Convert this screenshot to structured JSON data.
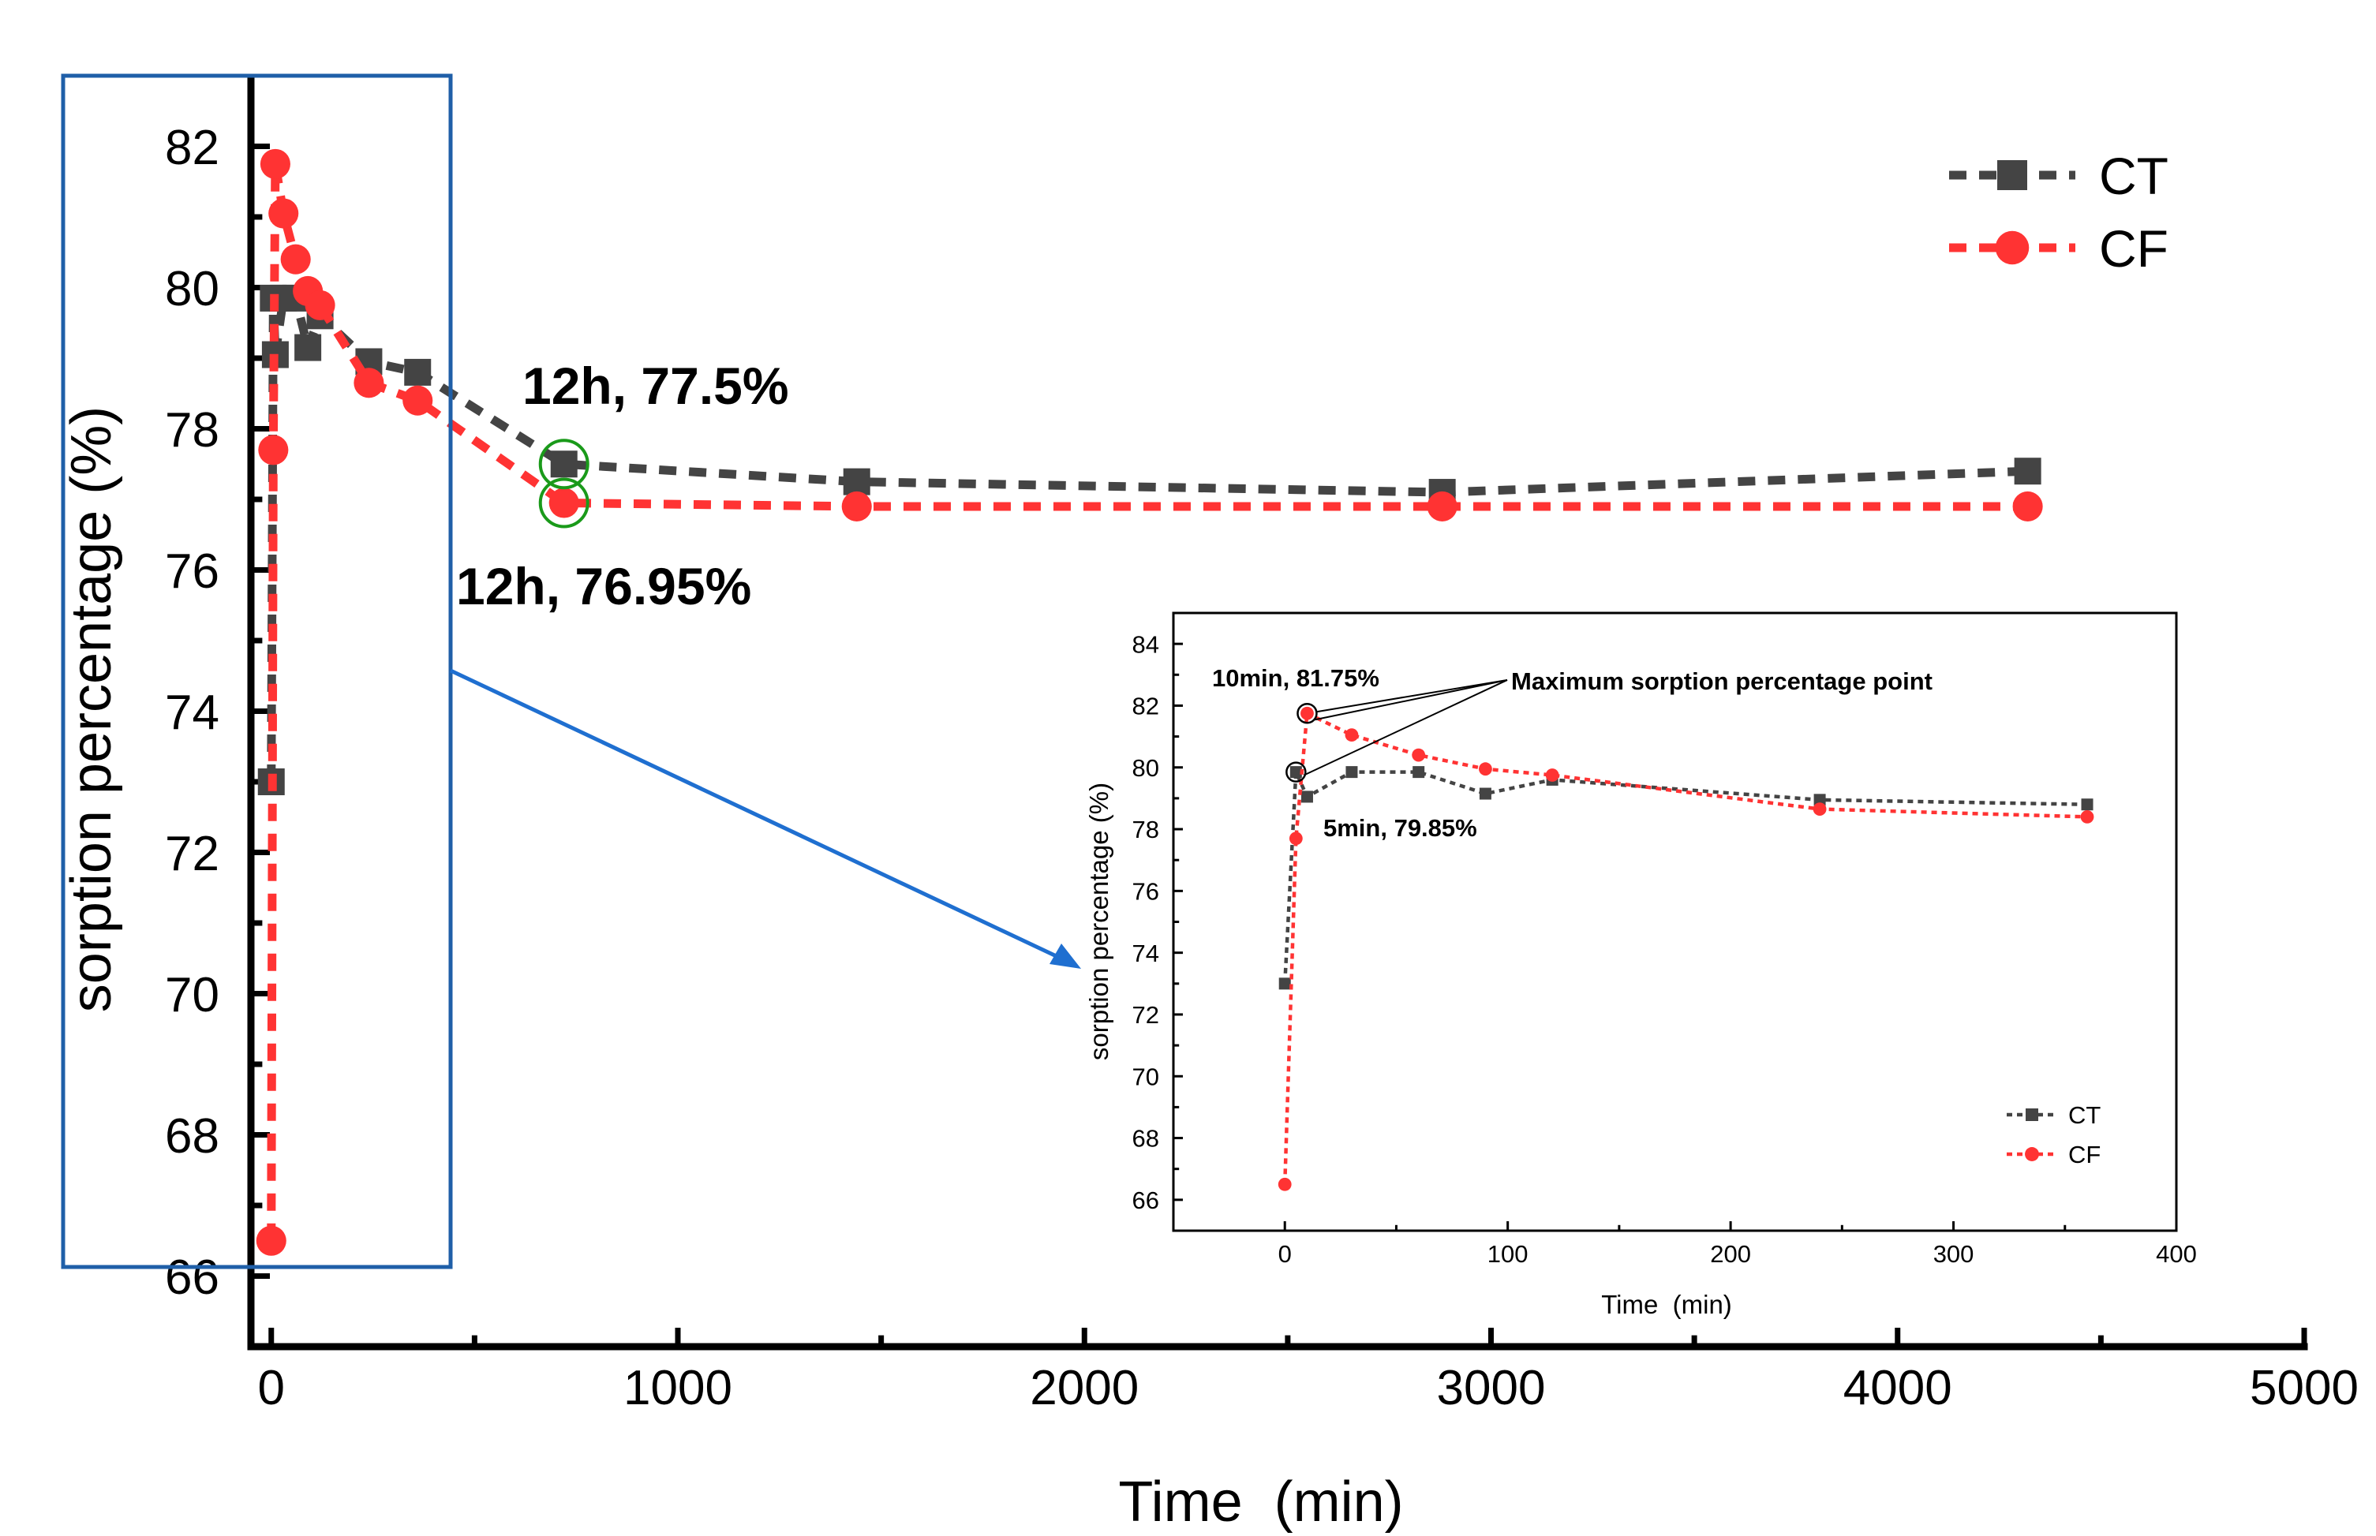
{
  "chart_data": [
    {
      "type": "line",
      "xlabel": "Time  (min)",
      "ylabel": "sorption percentage (%)",
      "xlim": [
        -50,
        5000
      ],
      "ylim": [
        65,
        83
      ],
      "xticks": [
        0,
        1000,
        2000,
        3000,
        4000,
        5000
      ],
      "yticks": [
        66,
        68,
        70,
        72,
        74,
        76,
        78,
        80,
        82
      ],
      "legend_position": "top-right",
      "series": [
        {
          "name": "CT",
          "color": "#444444",
          "marker": "square",
          "x": [
            0,
            5,
            10,
            30,
            60,
            90,
            120,
            240,
            360,
            720,
            1440,
            2880,
            4320
          ],
          "y": [
            73.0,
            79.85,
            79.05,
            79.85,
            79.85,
            79.15,
            79.6,
            78.95,
            78.8,
            77.5,
            77.25,
            77.1,
            77.4
          ]
        },
        {
          "name": "CF",
          "color": "#ff3333",
          "marker": "circle",
          "x": [
            0,
            5,
            10,
            30,
            60,
            90,
            120,
            240,
            360,
            720,
            1440,
            2880,
            4320
          ],
          "y": [
            66.5,
            77.7,
            81.75,
            81.05,
            80.4,
            79.95,
            79.75,
            78.65,
            78.4,
            76.95,
            76.9,
            76.9,
            76.9
          ]
        }
      ],
      "annotations": [
        {
          "text": "12h, 77.5%",
          "series": "CT",
          "x": 720,
          "y": 77.5
        },
        {
          "text": "12h, 76.95%",
          "series": "CF",
          "x": 720,
          "y": 76.95
        }
      ]
    },
    {
      "type": "line",
      "role": "inset",
      "xlabel": "Time  (min)",
      "ylabel": "sorption percentage (%)",
      "xlim": [
        -50,
        400
      ],
      "ylim": [
        65,
        85
      ],
      "xticks": [
        0,
        100,
        200,
        300,
        400
      ],
      "yticks": [
        66,
        68,
        70,
        72,
        74,
        76,
        78,
        80,
        82,
        84
      ],
      "legend_position": "bottom-right",
      "series": [
        {
          "name": "CT",
          "color": "#444444",
          "marker": "square",
          "x": [
            0,
            5,
            10,
            30,
            60,
            90,
            120,
            240,
            360
          ],
          "y": [
            73.0,
            79.85,
            79.05,
            79.85,
            79.85,
            79.15,
            79.6,
            78.95,
            78.8
          ]
        },
        {
          "name": "CF",
          "color": "#ff3333",
          "marker": "circle",
          "x": [
            0,
            5,
            10,
            30,
            60,
            90,
            120,
            240,
            360
          ],
          "y": [
            66.5,
            77.7,
            81.75,
            81.05,
            80.4,
            79.95,
            79.75,
            78.65,
            78.4
          ]
        }
      ],
      "annotations": [
        {
          "text": "10min, 81.75%",
          "series": "CF",
          "x": 10,
          "y": 81.75
        },
        {
          "text": "5min, 79.85%",
          "series": "CT",
          "x": 5,
          "y": 79.85
        },
        {
          "text": "Maximum sorption percentage point"
        }
      ]
    }
  ]
}
